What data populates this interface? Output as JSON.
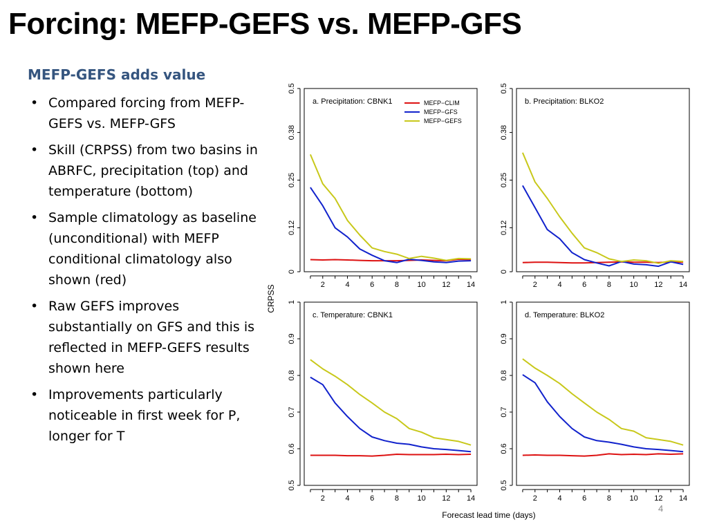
{
  "slide": {
    "title": "Forcing: MEFP-GEFS vs. MEFP-GFS",
    "subheading": "MEFP-GEFS adds value",
    "bullets": [
      "Compared forcing from MEFP-GEFS vs. MEFP-GFS",
      "Skill (CRPSS) from two basins in ABRFC, precipitation (top) and temperature (bottom)",
      "Sample climatology as baseline (unconditional) with MEFP conditional climatology also shown (red)",
      "Raw GEFS improves substantially on GFS and this is reflected in MEFP-GEFS results shown here",
      "Improvements particularly noticeable in first week for P, longer for T"
    ],
    "page_number": "4",
    "ylabel": "CRPSS",
    "xlabel": "Forecast lead time (days)"
  },
  "chart_data": [
    {
      "type": "line",
      "title": "a. Precipitation: CBNK1",
      "x": [
        1,
        2,
        3,
        4,
        5,
        6,
        7,
        8,
        9,
        10,
        11,
        12,
        13,
        14
      ],
      "xticks": [
        2,
        4,
        6,
        8,
        10,
        12,
        14
      ],
      "ylim": [
        0,
        0.5
      ],
      "yticks": [
        "0",
        "0.12",
        "0.25",
        "0.38",
        "0.5"
      ],
      "legend_position": "top-right",
      "series": [
        {
          "name": "MEFP−CLIM",
          "color": "#dd1111",
          "values": [
            0.033,
            0.032,
            0.033,
            0.032,
            0.031,
            0.03,
            0.03,
            0.03,
            0.031,
            0.032,
            0.031,
            0.03,
            0.034,
            0.033
          ]
        },
        {
          "name": "MEFP−GFS",
          "color": "#1122cc",
          "values": [
            0.23,
            0.18,
            0.12,
            0.095,
            0.062,
            0.045,
            0.03,
            0.025,
            0.034,
            0.031,
            0.027,
            0.025,
            0.029,
            0.03
          ]
        },
        {
          "name": "MEFP−GEFS",
          "color": "#c8c81a",
          "values": [
            0.32,
            0.24,
            0.2,
            0.14,
            0.1,
            0.065,
            0.055,
            0.048,
            0.036,
            0.042,
            0.037,
            0.031,
            0.036,
            0.035
          ]
        }
      ]
    },
    {
      "type": "line",
      "title": "b. Precipitation: BLKO2",
      "x": [
        1,
        2,
        3,
        4,
        5,
        6,
        7,
        8,
        9,
        10,
        11,
        12,
        13,
        14
      ],
      "xticks": [
        2,
        4,
        6,
        8,
        10,
        12,
        14
      ],
      "ylim": [
        0,
        0.5
      ],
      "yticks": [
        "0",
        "0.12",
        "0.25",
        "0.38",
        "0.5"
      ],
      "series": [
        {
          "name": "MEFP−CLIM",
          "color": "#dd1111",
          "values": [
            0.025,
            0.026,
            0.026,
            0.025,
            0.024,
            0.024,
            0.025,
            0.026,
            0.027,
            0.026,
            0.026,
            0.025,
            0.027,
            0.026
          ]
        },
        {
          "name": "MEFP−GFS",
          "color": "#1122cc",
          "values": [
            0.235,
            0.175,
            0.115,
            0.09,
            0.052,
            0.033,
            0.024,
            0.016,
            0.028,
            0.021,
            0.019,
            0.015,
            0.027,
            0.02
          ]
        },
        {
          "name": "MEFP−GEFS",
          "color": "#c8c81a",
          "values": [
            0.325,
            0.245,
            0.2,
            0.15,
            0.105,
            0.065,
            0.052,
            0.035,
            0.028,
            0.032,
            0.03,
            0.023,
            0.03,
            0.028
          ]
        }
      ]
    },
    {
      "type": "line",
      "title": "c. Temperature: CBNK1",
      "x": [
        1,
        2,
        3,
        4,
        5,
        6,
        7,
        8,
        9,
        10,
        11,
        12,
        13,
        14
      ],
      "xticks": [
        2,
        4,
        6,
        8,
        10,
        12,
        14
      ],
      "ylim": [
        0.5,
        1
      ],
      "yticks": [
        "0.5",
        "0.6",
        "0.7",
        "0.8",
        "0.9",
        "1"
      ],
      "series": [
        {
          "name": "MEFP−CLIM",
          "color": "#dd1111",
          "values": [
            0.582,
            0.582,
            0.582,
            0.581,
            0.581,
            0.58,
            0.582,
            0.585,
            0.584,
            0.584,
            0.584,
            0.585,
            0.584,
            0.585
          ]
        },
        {
          "name": "MEFP−GFS",
          "color": "#1122cc",
          "values": [
            0.795,
            0.775,
            0.725,
            0.688,
            0.655,
            0.632,
            0.622,
            0.615,
            0.612,
            0.605,
            0.6,
            0.598,
            0.595,
            0.592
          ]
        },
        {
          "name": "MEFP−GEFS",
          "color": "#c8c81a",
          "values": [
            0.843,
            0.818,
            0.798,
            0.775,
            0.748,
            0.725,
            0.7,
            0.682,
            0.655,
            0.645,
            0.63,
            0.625,
            0.62,
            0.61
          ]
        }
      ]
    },
    {
      "type": "line",
      "title": "d. Temperature: BLKO2",
      "x": [
        1,
        2,
        3,
        4,
        5,
        6,
        7,
        8,
        9,
        10,
        11,
        12,
        13,
        14
      ],
      "xticks": [
        2,
        4,
        6,
        8,
        10,
        12,
        14
      ],
      "ylim": [
        0.5,
        1
      ],
      "yticks": [
        "0.5",
        "0.6",
        "0.7",
        "0.8",
        "0.9",
        "1"
      ],
      "series": [
        {
          "name": "MEFP−CLIM",
          "color": "#dd1111",
          "values": [
            0.582,
            0.583,
            0.582,
            0.582,
            0.581,
            0.58,
            0.582,
            0.586,
            0.584,
            0.585,
            0.584,
            0.586,
            0.585,
            0.586
          ]
        },
        {
          "name": "MEFP−GFS",
          "color": "#1122cc",
          "values": [
            0.802,
            0.78,
            0.728,
            0.688,
            0.655,
            0.632,
            0.622,
            0.618,
            0.612,
            0.605,
            0.6,
            0.598,
            0.595,
            0.592
          ]
        },
        {
          "name": "MEFP−GEFS",
          "color": "#c8c81a",
          "values": [
            0.845,
            0.82,
            0.8,
            0.778,
            0.75,
            0.725,
            0.7,
            0.68,
            0.655,
            0.648,
            0.63,
            0.625,
            0.62,
            0.61
          ]
        }
      ]
    }
  ]
}
